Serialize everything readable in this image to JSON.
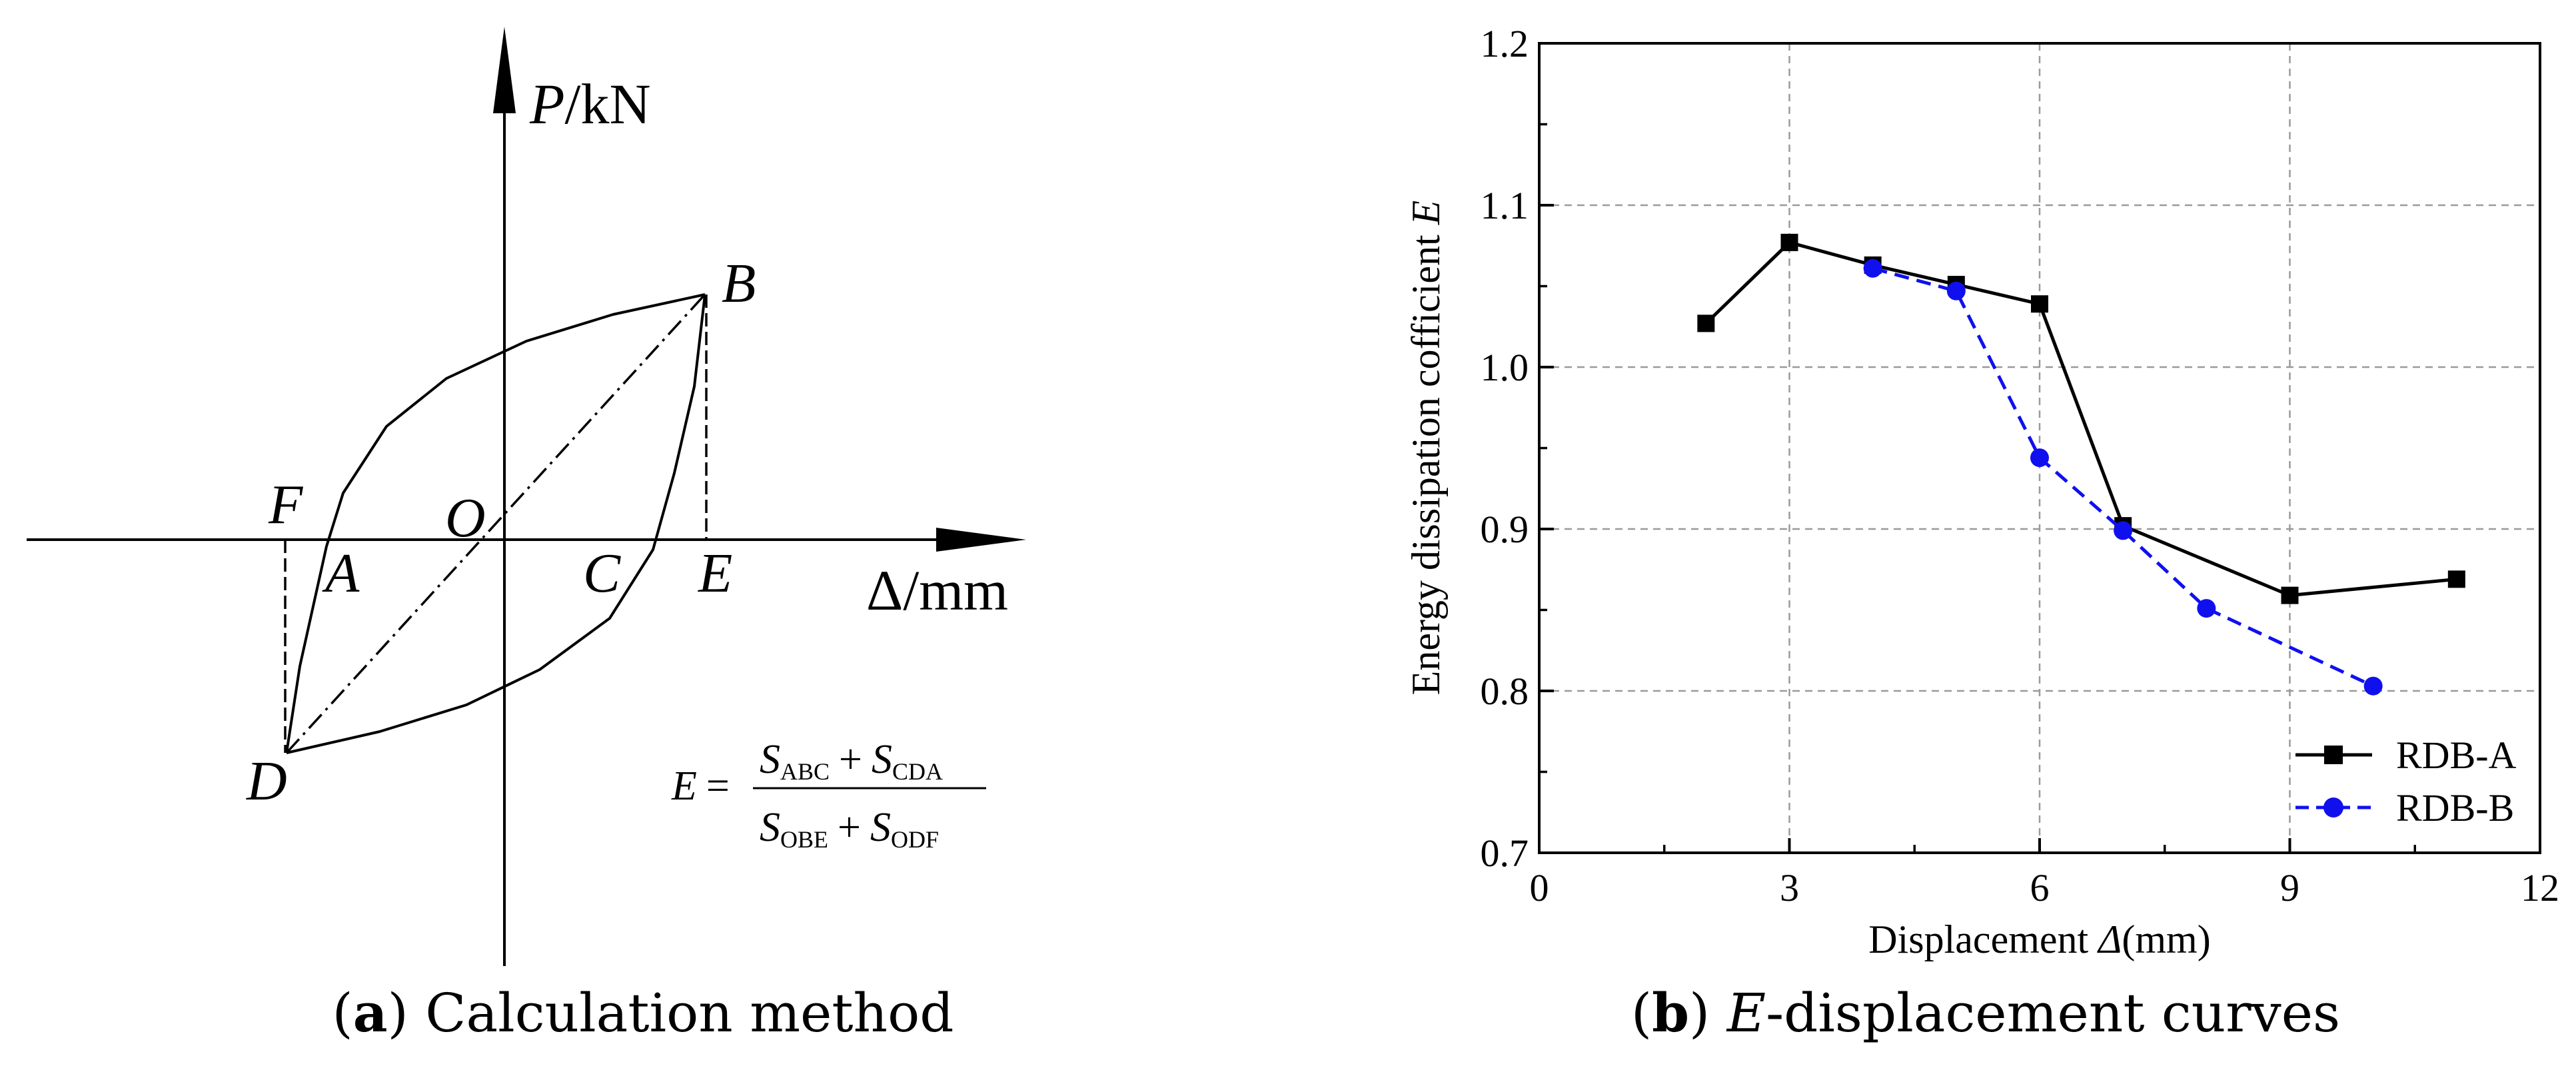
{
  "panel_a": {
    "caption_letter": "a",
    "caption_text": " Calculation method",
    "y_axis_label_italic": "P",
    "y_axis_label_unit": "/kN",
    "x_axis_label_delta": "Δ",
    "x_axis_label_unit": "/mm",
    "points": {
      "A": "A",
      "B": "B",
      "C": "C",
      "D": "D",
      "E": "E",
      "F": "F",
      "O": "O"
    },
    "formula": {
      "lhs": "E",
      "equals": "=",
      "plus": "+",
      "S": "S",
      "num_sub1": "ABC",
      "num_sub2": "CDA",
      "den_sub1": "OBE",
      "den_sub2": "ODF"
    }
  },
  "panel_b": {
    "caption_letter": "b",
    "caption_italic": "E",
    "caption_text": "-displacement curves"
  },
  "chart_data": {
    "type": "line",
    "title": "",
    "xlabel_prefix": "Displacement ",
    "xlabel_italic": "Δ",
    "xlabel_suffix": "(mm)",
    "ylabel_prefix": "Energy dissipation cofficient ",
    "ylabel_italic": "E",
    "xlim": [
      0,
      12
    ],
    "ylim": [
      0.7,
      1.2
    ],
    "xticks": [
      0,
      3,
      6,
      9,
      12
    ],
    "yticks": [
      0.7,
      0.8,
      0.9,
      1.0,
      1.1,
      1.2
    ],
    "xtick_labels": [
      "0",
      "3",
      "6",
      "9",
      "12"
    ],
    "ytick_labels": [
      "0.7",
      "0.8",
      "0.9",
      "1.0",
      "1.1",
      "1.2"
    ],
    "grid": true,
    "legend_position": "bottom-right",
    "series": [
      {
        "name": "RDB-A",
        "color": "#000000",
        "marker": "square",
        "line_style": "solid",
        "x": [
          2,
          3,
          4,
          5,
          6,
          7,
          9,
          11
        ],
        "y": [
          1.027,
          1.077,
          1.063,
          1.051,
          1.039,
          0.902,
          0.859,
          0.869
        ]
      },
      {
        "name": "RDB-B",
        "color": "#1010ee",
        "marker": "circle",
        "line_style": "dashed",
        "x": [
          4,
          5,
          6,
          7,
          8,
          10
        ],
        "y": [
          1.061,
          1.047,
          0.944,
          0.899,
          0.851,
          0.803
        ]
      }
    ]
  }
}
